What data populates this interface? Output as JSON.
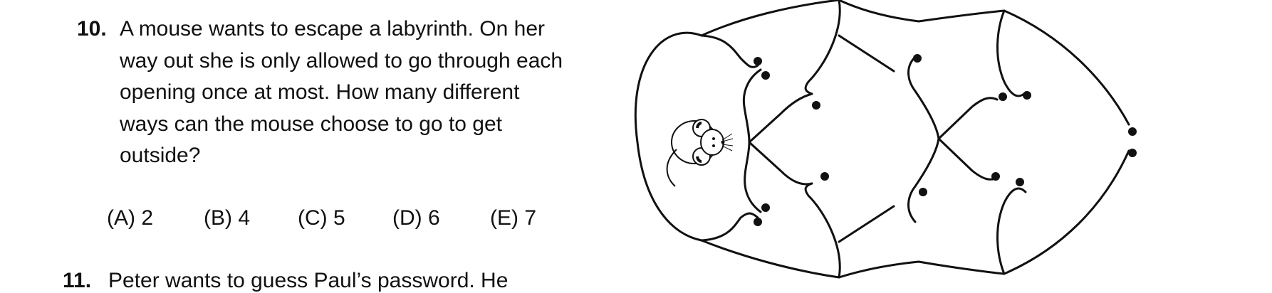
{
  "question10": {
    "number": "10.",
    "lines": [
      "A mouse wants to escape a labyrinth. On her",
      "way out she is only allowed to go through each",
      "opening once at most. How many different",
      "ways can the mouse choose to go to get",
      "outside?"
    ],
    "choices": [
      "(A) 2",
      "(B) 4",
      "(C) 5",
      "(D) 6",
      "(E) 7"
    ]
  },
  "question11": {
    "number": "11.",
    "line": "Peter wants to guess Paul’s password. He"
  },
  "figure": {
    "stroke_color": "#111111",
    "mouse_icon": "mouse-icon"
  }
}
